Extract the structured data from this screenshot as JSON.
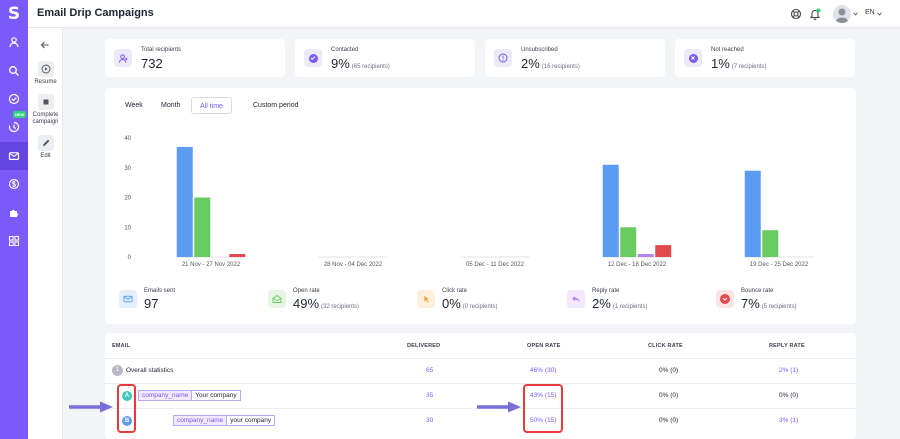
{
  "app": {
    "logo_letter": "S",
    "title": "Email Drip Campaigns",
    "language": "EN",
    "new_badge": "NEW"
  },
  "subnav": [
    {
      "label": "Resume",
      "icon": "play-circle-icon"
    },
    {
      "label": "Complete campaign",
      "icon": "stop-icon"
    },
    {
      "label": "Edit",
      "icon": "pencil-icon"
    }
  ],
  "stats": [
    {
      "label": "Total recipients",
      "value": "732",
      "sub": "",
      "icon": "users-icon"
    },
    {
      "label": "Contacted",
      "value": "9%",
      "sub": "(65 recipients)",
      "icon": "check-circle-icon"
    },
    {
      "label": "Unsubscribed",
      "value": "2%",
      "sub": "(16 recipients)",
      "icon": "unsubscribe-icon"
    },
    {
      "label": "Not reached",
      "value": "1%",
      "sub": "(7 recipients)",
      "icon": "x-circle-icon"
    }
  ],
  "tabs": [
    {
      "label": "Week"
    },
    {
      "label": "Month"
    },
    {
      "label": "All time"
    },
    {
      "label": "Custom period"
    }
  ],
  "active_tab": "All time",
  "colors": {
    "accent": "#7a5af8",
    "blue": "#5b9cf0",
    "green": "#6acb62",
    "purple": "#b880f2",
    "red": "#e14a4f",
    "highlight": "#e53b3b"
  },
  "chart_data": {
    "type": "bar",
    "categories": [
      "21 Nov - 27 Nov 2022",
      "28 Nov - 04 Dec 2022",
      "05 Dec - 11 Dec 2022",
      "12 Dec - 18 Dec 2022",
      "19 Dec - 25 Dec 2022"
    ],
    "yticks": [
      "0",
      "10",
      "20",
      "30",
      "40"
    ],
    "ylim": [
      0,
      40
    ],
    "grid": false,
    "series": [
      {
        "values": [
          37,
          0,
          0,
          31,
          29
        ],
        "color": "#5b9cf0"
      },
      {
        "values": [
          20,
          0,
          0,
          10,
          9
        ],
        "color": "#6acb62"
      },
      {
        "values": [
          0,
          0,
          0,
          1,
          0
        ],
        "color": "#b880f2"
      },
      {
        "values": [
          1,
          0,
          0,
          4,
          0
        ],
        "color": "#e14a4f"
      }
    ]
  },
  "metrics": [
    {
      "label": "Emails sent",
      "value": "97",
      "sub": "",
      "icon": "mail-icon",
      "bg": "#e3effd",
      "fg": "#5b9cf0"
    },
    {
      "label": "Open rate",
      "value": "49%",
      "sub": "(32 recipients)",
      "icon": "open-mail-icon",
      "bg": "#e5f6e3",
      "fg": "#6acb62"
    },
    {
      "label": "Click rate",
      "value": "0%",
      "sub": "(0 recipients)",
      "icon": "cursor-click-icon",
      "bg": "#fdf1dd",
      "fg": "#f0a940"
    },
    {
      "label": "Reply rate",
      "value": "2%",
      "sub": "(1 recipients)",
      "icon": "reply-icon",
      "bg": "#f3e8fd",
      "fg": "#b880f2"
    },
    {
      "label": "Bounce rate",
      "value": "7%",
      "sub": "(5 recipients)",
      "icon": "bounce-icon",
      "bg": "#fde4e4",
      "fg": "#e14a4f"
    }
  ],
  "table": {
    "headers": {
      "email": "EMAIL",
      "delivered": "DELIVERED",
      "open_rate": "OPEN RATE",
      "click_rate": "CLICK RATE",
      "reply_rate": "REPLY RATE"
    },
    "overall": {
      "num": "1",
      "label": "Overall statistics",
      "delivered": "65",
      "open_rate": "46% (30)",
      "click_rate": "0% (0)",
      "reply_rate": "2% (1)"
    },
    "variants": [
      {
        "letter": "A",
        "color": "#3fc9b6",
        "tag_key": "company_name",
        "tag_value": "Your company",
        "delivered": "35",
        "open_rate": "43% (15)",
        "click_rate": "0% (0)",
        "reply_rate": "0% (0)"
      },
      {
        "letter": "B",
        "color": "#5b9cf0",
        "tag_key": "company_name",
        "tag_value": "your company",
        "delivered": "30",
        "open_rate": "50% (15)",
        "click_rate": "0% (0)",
        "reply_rate": "3% (1)"
      }
    ]
  }
}
